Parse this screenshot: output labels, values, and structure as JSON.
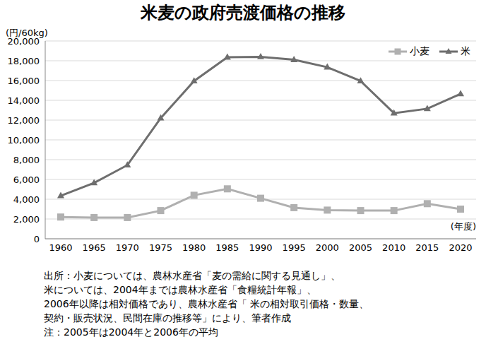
{
  "chart_data": {
    "type": "line",
    "title": "米麦の政府売渡価格の推移",
    "y_label": "(円/60kg)",
    "x_label": "(年度)",
    "categories": [
      "1960",
      "1965",
      "1970",
      "1975",
      "1980",
      "1985",
      "1990",
      "1995",
      "2000",
      "2005",
      "2010",
      "2015",
      "2020"
    ],
    "series": [
      {
        "name": "小麦",
        "color": "#b0b0b0",
        "marker": "square",
        "values": [
          2200,
          2150,
          2150,
          2850,
          4400,
          5050,
          4100,
          3150,
          2900,
          2850,
          2850,
          3550,
          3000
        ]
      },
      {
        "name": "米",
        "color": "#6e6e6e",
        "marker": "triangle",
        "values": [
          4350,
          5650,
          7450,
          12200,
          15950,
          18350,
          18400,
          18100,
          17350,
          15950,
          12700,
          13150,
          14650
        ]
      }
    ],
    "ylim": [
      0,
      20000
    ],
    "yticks": [
      0,
      {
        "value": 2000,
        "label": "2,000"
      },
      {
        "value": 4000,
        "label": "4,000"
      },
      {
        "value": 6000,
        "label": "6,000"
      },
      {
        "value": 8000,
        "label": "8,000"
      },
      {
        "value": 10000,
        "label": "10,000"
      },
      {
        "value": 12000,
        "label": "12,000"
      },
      {
        "value": 14000,
        "label": "14,000"
      },
      {
        "value": 16000,
        "label": "16,000"
      },
      {
        "value": 18000,
        "label": "18,000"
      },
      {
        "value": 20000,
        "label": "20,000"
      }
    ],
    "grid": true,
    "legend": "upper right",
    "notes": [
      "出所：小麦については、農林水産省「麦の需給に関する見通し」、",
      "米については、2004年までは農林水産省「食糧統計年報」、",
      "2006年以降は相対価格であり、農林水産省「 米の相対取引価格・数量、",
      "契約・販売状況、民間在庫の推移等」により、筆者作成",
      "注：2005年は2004年と2006年の平均"
    ]
  }
}
